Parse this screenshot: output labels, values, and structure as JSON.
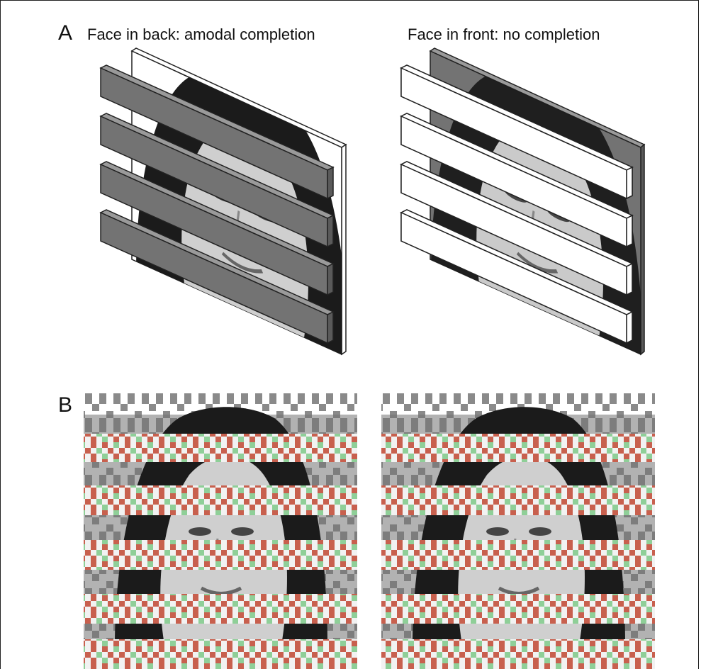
{
  "figure": {
    "panel_a": {
      "letter": "A",
      "left_title": "Face in back: amodal completion",
      "right_title": "Face in front: no completion"
    },
    "panel_b": {
      "letter": "B"
    }
  },
  "colors": {
    "dark_gray": "#737373",
    "noise_red": "#c8604e",
    "noise_green": "#8fcf98",
    "noise_gray": "#8a8a8a",
    "face_dark": "#1b1b1b",
    "face_skin": "#cfcfcf"
  }
}
